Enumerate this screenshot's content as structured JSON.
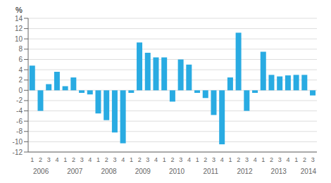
{
  "chart_data": {
    "type": "bar",
    "y_label": "%",
    "categories": [
      "1",
      "2",
      "3",
      "4",
      "1",
      "2",
      "3",
      "4",
      "1",
      "2",
      "3",
      "4",
      "1",
      "2",
      "3",
      "4",
      "1",
      "2",
      "3",
      "4",
      "1",
      "2",
      "3",
      "4",
      "1",
      "2",
      "3",
      "4",
      "1",
      "2",
      "3",
      "4",
      "1",
      "2",
      "3"
    ],
    "values": [
      4.8,
      -4.0,
      1.2,
      3.6,
      0.8,
      2.5,
      -0.5,
      -0.8,
      -4.5,
      -5.8,
      -8.2,
      -10.3,
      -0.5,
      9.3,
      7.3,
      6.4,
      6.4,
      -2.2,
      6.0,
      5.0,
      -0.5,
      -1.5,
      -4.8,
      -10.5,
      2.5,
      11.2,
      -4.0,
      -0.5,
      7.5,
      3.0,
      2.7,
      2.9,
      3.0,
      3.0,
      -1.0
    ],
    "color": "#29ABE2",
    "ylim": [
      -12,
      14
    ],
    "yticks": [
      -12,
      -10,
      -8,
      -6,
      -4,
      -2,
      0,
      2,
      4,
      6,
      8,
      10,
      12,
      14
    ],
    "grid": true,
    "annotations": [
      {
        "text": "2006",
        "x": 1.5
      },
      {
        "text": "2007",
        "x": 5.5
      },
      {
        "text": "2008",
        "x": 9.5
      },
      {
        "text": "2009",
        "x": 13.5
      },
      {
        "text": "2010",
        "x": 17.5
      },
      {
        "text": "2011",
        "x": 21.5
      },
      {
        "text": "2012",
        "x": 25.5
      },
      {
        "text": "2013",
        "x": 29.5
      },
      {
        "text": "2014",
        "x": 33.0
      }
    ]
  }
}
